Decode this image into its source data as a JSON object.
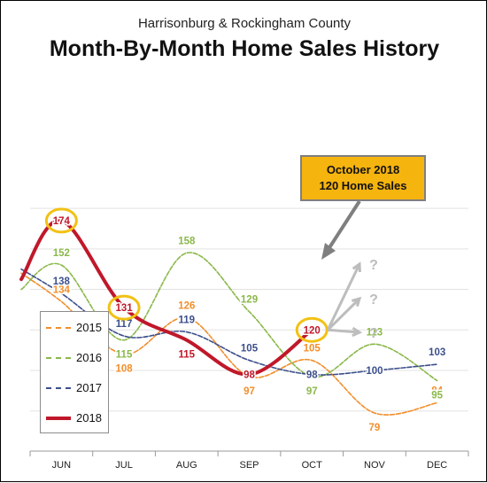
{
  "chart_data": {
    "type": "line",
    "subtitle": "Harrisonburg & Rockingham County",
    "title": "Month-By-Month Home Sales History",
    "categories": [
      "JUN",
      "JUL",
      "AUG",
      "SEP",
      "OCT",
      "NOV",
      "DEC"
    ],
    "ylim": [
      60,
      190
    ],
    "grid": true,
    "legend_position": "bottom-left",
    "series": [
      {
        "name": "2015",
        "color": "#f28e2b",
        "values": [
          134,
          108,
          126,
          97,
          105,
          79,
          84
        ]
      },
      {
        "name": "2016",
        "color": "#8ab84a",
        "values": [
          152,
          115,
          158,
          129,
          97,
          113,
          95
        ]
      },
      {
        "name": "2017",
        "color": "#3c4f8c",
        "values": [
          138,
          117,
          119,
          105,
          98,
          100,
          103
        ]
      },
      {
        "name": "2018",
        "color": "#c0182a",
        "values": [
          174,
          131,
          115,
          98,
          120,
          null,
          null
        ]
      }
    ],
    "projection_marks": [
      "?",
      "?",
      "?"
    ],
    "annotation": {
      "line1": "October 2018",
      "line2": "120 Home Sales"
    }
  }
}
